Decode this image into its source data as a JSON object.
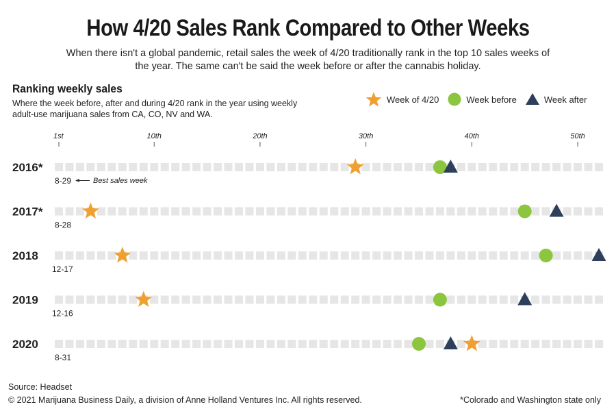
{
  "header": {
    "title": "How 4/20 Sales Rank Compared to Other Weeks",
    "subtitle": "When there isn't a global pandemic, retail sales the week of 4/20 traditionally rank in the top 10 sales weeks of the year. The same can't be said the week before or after the cannabis holiday."
  },
  "section": {
    "title": "Ranking weekly sales",
    "description": "Where the week before, after and during 4/20 rank in the year using weekly adult-use marijuana sales from CA, CO, NV and WA."
  },
  "legend": {
    "items": [
      {
        "label": "Week of 4/20",
        "symbol": "star",
        "color": "#f0a030"
      },
      {
        "label": "Week before",
        "symbol": "circle",
        "color": "#8cc63f"
      },
      {
        "label": "Week after",
        "symbol": "triangle",
        "color": "#2e3f5c"
      }
    ]
  },
  "chart_data": {
    "type": "scatter",
    "title": "Ranking weekly sales",
    "x_axis": {
      "range": [
        1,
        52
      ],
      "ticks": [
        {
          "value": 1,
          "label": "1st"
        },
        {
          "value": 10,
          "label": "10th"
        },
        {
          "value": 20,
          "label": "20th"
        },
        {
          "value": 30,
          "label": "30th"
        },
        {
          "value": 40,
          "label": "40th"
        },
        {
          "value": 50,
          "label": "50th"
        }
      ]
    },
    "rows": [
      {
        "year": "2016*",
        "best_week": "8-29",
        "week_of_420": 29,
        "week_before": 37,
        "week_after": 38
      },
      {
        "year": "2017*",
        "best_week": "8-28",
        "week_of_420": 4,
        "week_before": 45,
        "week_after": 48
      },
      {
        "year": "2018",
        "best_week": "12-17",
        "week_of_420": 7,
        "week_before": 47,
        "week_after": 52
      },
      {
        "year": "2019",
        "best_week": "12-16",
        "week_of_420": 9,
        "week_before": 37,
        "week_after": 45
      },
      {
        "year": "2020",
        "best_week": "8-31",
        "week_of_420": 40,
        "week_before": 35,
        "week_after": 38
      }
    ],
    "annotation": "Best sales week",
    "colors": {
      "track": "#e6e6e6",
      "star": "#f0a030",
      "circle": "#8cc63f",
      "triangle": "#2e3f5c"
    }
  },
  "footer": {
    "source": "Source: Headset",
    "copyright": "© 2021 Marijuana Business Daily, a division of Anne Holland Ventures Inc. All rights reserved.",
    "footnote": "*Colorado and Washington state only"
  }
}
